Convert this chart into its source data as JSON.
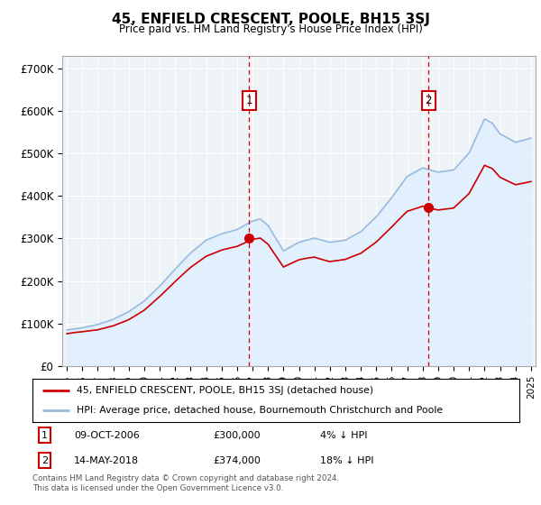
{
  "title": "45, ENFIELD CRESCENT, POOLE, BH15 3SJ",
  "subtitle": "Price paid vs. HM Land Registry's House Price Index (HPI)",
  "ylabel_ticks": [
    "£0",
    "£100K",
    "£200K",
    "£300K",
    "£400K",
    "£500K",
    "£600K",
    "£700K"
  ],
  "ytick_values": [
    0,
    100000,
    200000,
    300000,
    400000,
    500000,
    600000,
    700000
  ],
  "ylim": [
    0,
    730000
  ],
  "xlim_start": 1994.7,
  "xlim_end": 2025.3,
  "marker1_x": 2006.77,
  "marker1_y": 300000,
  "marker2_x": 2018.37,
  "marker2_y": 374000,
  "legend_line1": "45, ENFIELD CRESCENT, POOLE, BH15 3SJ (detached house)",
  "legend_line2": "HPI: Average price, detached house, Bournemouth Christchurch and Poole",
  "footnote": "Contains HM Land Registry data © Crown copyright and database right 2024.\nThis data is licensed under the Open Government Licence v3.0.",
  "line_red": "#cc0000",
  "line_blue": "#99bbdd",
  "fill_blue": "#ddeeff",
  "bg_plot": "#eef3f8"
}
